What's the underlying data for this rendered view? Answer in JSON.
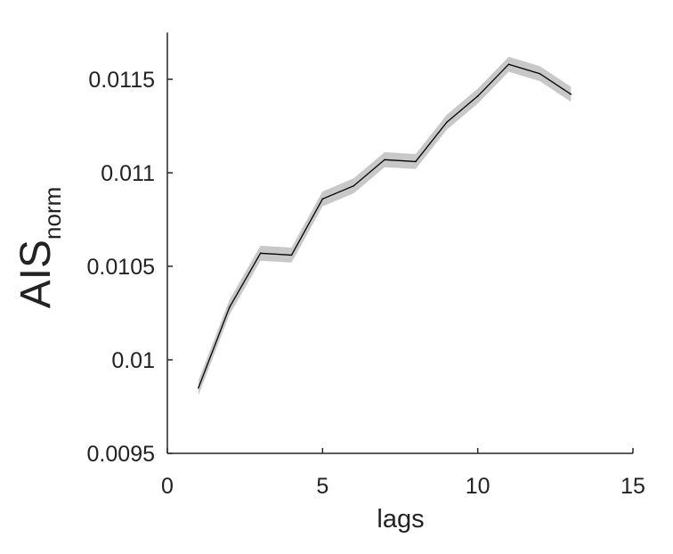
{
  "chart_data": {
    "type": "line",
    "xlabel": "lags",
    "ylabel": {
      "main": "AIS",
      "subscript": "norm"
    },
    "xlim": [
      0,
      15
    ],
    "ylim": [
      0.0095,
      0.01175
    ],
    "xticks": [
      0,
      5,
      10,
      15
    ],
    "xtick_labels": [
      "0",
      "5",
      "10",
      "15"
    ],
    "yticks": [
      0.0095,
      0.01,
      0.0105,
      0.011,
      0.0115
    ],
    "ytick_labels": [
      "0.0095",
      "0.01",
      "0.0105",
      "0.011",
      "0.0115"
    ],
    "grid": false,
    "legend": "none",
    "series": [
      {
        "x": [
          1,
          2,
          3,
          4,
          5,
          6,
          7,
          8,
          9,
          10,
          11,
          12,
          13
        ],
        "y": [
          0.00985,
          0.01028,
          0.01057,
          0.01056,
          0.01086,
          0.01093,
          0.01107,
          0.01106,
          0.01127,
          0.01141,
          0.01158,
          0.01153,
          0.01142
        ],
        "band_half_width": 4e-05,
        "color": "#000000",
        "band_color": "#c8c8c8"
      }
    ]
  }
}
